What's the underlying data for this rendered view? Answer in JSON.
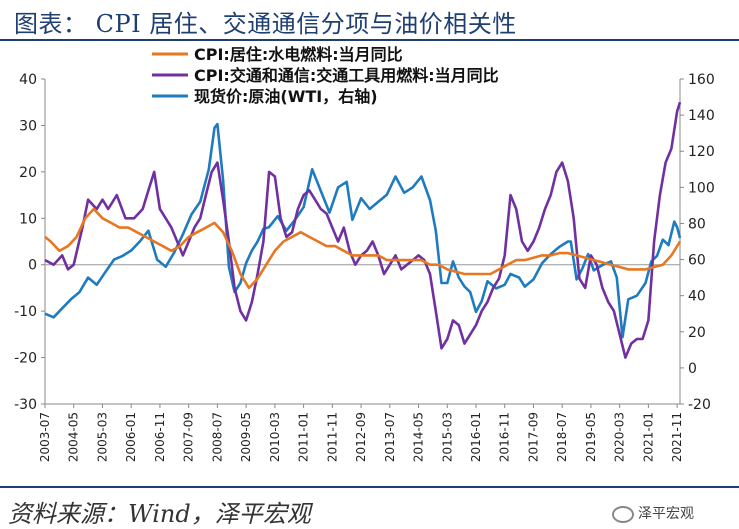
{
  "title": "图表： CPI 居住、交通通信分项与油价相关性",
  "source": "资料来源：Wind，泽平宏观",
  "watermark": "泽平宏观",
  "chart_data": {
    "type": "line",
    "legend": [
      "CPI:居住:水电燃料:当月同比",
      "CPI:交通和通信:交通工具用燃料:当月同比",
      "现货价:原油(WTI，右轴)"
    ],
    "colors": [
      "#E87722",
      "#7030A0",
      "#1F7BC0"
    ],
    "y_left": {
      "min": -30,
      "max": 40,
      "ticks": [
        40,
        30,
        20,
        10,
        0,
        -10,
        -20,
        -30
      ]
    },
    "y_right": {
      "min": -20,
      "max": 160,
      "ticks": [
        160,
        140,
        120,
        100,
        80,
        60,
        40,
        20,
        0,
        -20
      ]
    },
    "x_ticks": [
      "2003-07",
      "2004-05",
      "2005-03",
      "2006-01",
      "2006-11",
      "2007-09",
      "2008-07",
      "2009-05",
      "2010-03",
      "2011-01",
      "2011-11",
      "2012-09",
      "2013-07",
      "2014-05",
      "2015-03",
      "2016-01",
      "2016-11",
      "2017-09",
      "2018-07",
      "2019-05",
      "2020-03",
      "2021-01",
      "2021-11"
    ],
    "x_range": [
      "2003-07",
      "2021-12"
    ],
    "series": [
      {
        "name": "CPI:居住:水电燃料:当月同比",
        "axis": "left",
        "points": [
          [
            "2003-07",
            6
          ],
          [
            "2003-09",
            5
          ],
          [
            "2003-12",
            3
          ],
          [
            "2004-03",
            4
          ],
          [
            "2004-06",
            6
          ],
          [
            "2004-09",
            10
          ],
          [
            "2004-12",
            12
          ],
          [
            "2005-03",
            10
          ],
          [
            "2005-06",
            9
          ],
          [
            "2005-09",
            8
          ],
          [
            "2005-12",
            8
          ],
          [
            "2006-03",
            7
          ],
          [
            "2006-06",
            6
          ],
          [
            "2006-09",
            5
          ],
          [
            "2006-12",
            4
          ],
          [
            "2007-03",
            3
          ],
          [
            "2007-06",
            4
          ],
          [
            "2007-09",
            6
          ],
          [
            "2007-12",
            7
          ],
          [
            "2008-03",
            8
          ],
          [
            "2008-06",
            9
          ],
          [
            "2008-09",
            7
          ],
          [
            "2008-12",
            3
          ],
          [
            "2009-03",
            -2
          ],
          [
            "2009-06",
            -5
          ],
          [
            "2009-09",
            -3
          ],
          [
            "2009-12",
            0
          ],
          [
            "2010-03",
            3
          ],
          [
            "2010-06",
            5
          ],
          [
            "2010-09",
            6
          ],
          [
            "2010-12",
            7
          ],
          [
            "2011-03",
            6
          ],
          [
            "2011-06",
            5
          ],
          [
            "2011-09",
            4
          ],
          [
            "2011-12",
            4
          ],
          [
            "2012-03",
            3
          ],
          [
            "2012-06",
            2
          ],
          [
            "2012-09",
            2
          ],
          [
            "2012-12",
            2
          ],
          [
            "2013-03",
            2
          ],
          [
            "2013-06",
            1
          ],
          [
            "2013-09",
            1
          ],
          [
            "2013-12",
            1
          ],
          [
            "2014-03",
            1
          ],
          [
            "2014-06",
            1
          ],
          [
            "2014-09",
            0
          ],
          [
            "2014-12",
            0
          ],
          [
            "2015-03",
            -1
          ],
          [
            "2015-06",
            -1.5
          ],
          [
            "2015-09",
            -2
          ],
          [
            "2015-12",
            -2
          ],
          [
            "2016-03",
            -2
          ],
          [
            "2016-06",
            -2
          ],
          [
            "2016-09",
            -1
          ],
          [
            "2016-12",
            0
          ],
          [
            "2017-03",
            1
          ],
          [
            "2017-06",
            1
          ],
          [
            "2017-09",
            1.5
          ],
          [
            "2017-12",
            2
          ],
          [
            "2018-03",
            2
          ],
          [
            "2018-06",
            2.5
          ],
          [
            "2018-09",
            2.5
          ],
          [
            "2018-12",
            2
          ],
          [
            "2019-03",
            1.5
          ],
          [
            "2019-06",
            1
          ],
          [
            "2019-09",
            0.5
          ],
          [
            "2019-12",
            0
          ],
          [
            "2020-03",
            -0.5
          ],
          [
            "2020-06",
            -1
          ],
          [
            "2020-09",
            -1
          ],
          [
            "2020-12",
            -1
          ],
          [
            "2021-03",
            -0.5
          ],
          [
            "2021-06",
            0
          ],
          [
            "2021-09",
            2
          ],
          [
            "2021-12",
            5
          ]
        ]
      },
      {
        "name": "CPI:交通和通信:交通工具用燃料:当月同比",
        "axis": "left",
        "points": [
          [
            "2003-07",
            1
          ],
          [
            "2003-10",
            0
          ],
          [
            "2004-01",
            2
          ],
          [
            "2004-03",
            -1
          ],
          [
            "2004-05",
            0
          ],
          [
            "2004-08",
            8
          ],
          [
            "2004-10",
            14
          ],
          [
            "2005-01",
            12
          ],
          [
            "2005-03",
            14
          ],
          [
            "2005-05",
            12
          ],
          [
            "2005-08",
            15
          ],
          [
            "2005-11",
            10
          ],
          [
            "2006-02",
            10
          ],
          [
            "2006-05",
            12
          ],
          [
            "2006-07",
            16
          ],
          [
            "2006-09",
            20
          ],
          [
            "2006-11",
            12
          ],
          [
            "2007-01",
            10
          ],
          [
            "2007-03",
            8
          ],
          [
            "2007-05",
            5
          ],
          [
            "2007-07",
            2
          ],
          [
            "2007-09",
            5
          ],
          [
            "2007-11",
            8
          ],
          [
            "2008-01",
            10
          ],
          [
            "2008-03",
            15
          ],
          [
            "2008-05",
            20
          ],
          [
            "2008-07",
            22
          ],
          [
            "2008-09",
            14
          ],
          [
            "2008-11",
            5
          ],
          [
            "2009-01",
            -5
          ],
          [
            "2009-03",
            -10
          ],
          [
            "2009-05",
            -12
          ],
          [
            "2009-07",
            -8
          ],
          [
            "2009-09",
            -2
          ],
          [
            "2009-11",
            5
          ],
          [
            "2010-01",
            20
          ],
          [
            "2010-03",
            19
          ],
          [
            "2010-05",
            10
          ],
          [
            "2010-07",
            6
          ],
          [
            "2010-09",
            7
          ],
          [
            "2010-11",
            12
          ],
          [
            "2011-01",
            15
          ],
          [
            "2011-03",
            16
          ],
          [
            "2011-05",
            14
          ],
          [
            "2011-07",
            12
          ],
          [
            "2011-09",
            11
          ],
          [
            "2011-11",
            8
          ],
          [
            "2012-01",
            5
          ],
          [
            "2012-03",
            8
          ],
          [
            "2012-05",
            3
          ],
          [
            "2012-07",
            0
          ],
          [
            "2012-09",
            2
          ],
          [
            "2012-11",
            3
          ],
          [
            "2013-01",
            5
          ],
          [
            "2013-03",
            2
          ],
          [
            "2013-05",
            -2
          ],
          [
            "2013-07",
            0
          ],
          [
            "2013-09",
            2
          ],
          [
            "2013-11",
            -1
          ],
          [
            "2014-01",
            0
          ],
          [
            "2014-03",
            1
          ],
          [
            "2014-05",
            2
          ],
          [
            "2014-07",
            1
          ],
          [
            "2014-09",
            -2
          ],
          [
            "2014-11",
            -10
          ],
          [
            "2015-01",
            -18
          ],
          [
            "2015-03",
            -16
          ],
          [
            "2015-05",
            -12
          ],
          [
            "2015-07",
            -13
          ],
          [
            "2015-09",
            -17
          ],
          [
            "2015-11",
            -15
          ],
          [
            "2016-01",
            -13
          ],
          [
            "2016-03",
            -10
          ],
          [
            "2016-05",
            -8
          ],
          [
            "2016-07",
            -5
          ],
          [
            "2016-09",
            -3
          ],
          [
            "2016-11",
            2
          ],
          [
            "2017-01",
            15
          ],
          [
            "2017-03",
            12
          ],
          [
            "2017-05",
            5
          ],
          [
            "2017-07",
            3
          ],
          [
            "2017-09",
            5
          ],
          [
            "2017-11",
            8
          ],
          [
            "2018-01",
            12
          ],
          [
            "2018-03",
            15
          ],
          [
            "2018-05",
            20
          ],
          [
            "2018-07",
            22
          ],
          [
            "2018-09",
            18
          ],
          [
            "2018-11",
            10
          ],
          [
            "2019-01",
            -3
          ],
          [
            "2019-03",
            -5
          ],
          [
            "2019-05",
            2
          ],
          [
            "2019-07",
            0
          ],
          [
            "2019-09",
            -5
          ],
          [
            "2019-11",
            -8
          ],
          [
            "2020-01",
            -10
          ],
          [
            "2020-03",
            -15
          ],
          [
            "2020-05",
            -20
          ],
          [
            "2020-07",
            -17
          ],
          [
            "2020-09",
            -16
          ],
          [
            "2020-11",
            -16
          ],
          [
            "2021-01",
            -12
          ],
          [
            "2021-03",
            5
          ],
          [
            "2021-05",
            15
          ],
          [
            "2021-07",
            22
          ],
          [
            "2021-09",
            25
          ],
          [
            "2021-11",
            33
          ],
          [
            "2021-12",
            35
          ]
        ]
      },
      {
        "name": "现货价:原油(WTI，右轴)",
        "axis": "right",
        "points": [
          [
            "2003-07",
            30
          ],
          [
            "2003-10",
            28
          ],
          [
            "2004-01",
            33
          ],
          [
            "2004-04",
            38
          ],
          [
            "2004-07",
            42
          ],
          [
            "2004-10",
            50
          ],
          [
            "2005-01",
            46
          ],
          [
            "2005-04",
            53
          ],
          [
            "2005-07",
            60
          ],
          [
            "2005-10",
            62
          ],
          [
            "2006-01",
            65
          ],
          [
            "2006-04",
            70
          ],
          [
            "2006-07",
            76
          ],
          [
            "2006-10",
            60
          ],
          [
            "2007-01",
            56
          ],
          [
            "2007-04",
            64
          ],
          [
            "2007-07",
            74
          ],
          [
            "2007-10",
            85
          ],
          [
            "2008-01",
            92
          ],
          [
            "2008-04",
            110
          ],
          [
            "2008-06",
            133
          ],
          [
            "2008-07",
            135
          ],
          [
            "2008-09",
            104
          ],
          [
            "2008-11",
            56
          ],
          [
            "2009-01",
            42
          ],
          [
            "2009-03",
            47
          ],
          [
            "2009-05",
            58
          ],
          [
            "2009-07",
            65
          ],
          [
            "2009-09",
            70
          ],
          [
            "2009-11",
            77
          ],
          [
            "2010-01",
            78
          ],
          [
            "2010-04",
            84
          ],
          [
            "2010-07",
            76
          ],
          [
            "2010-10",
            82
          ],
          [
            "2011-01",
            89
          ],
          [
            "2011-04",
            110
          ],
          [
            "2011-07",
            98
          ],
          [
            "2011-10",
            86
          ],
          [
            "2012-01",
            100
          ],
          [
            "2012-04",
            103
          ],
          [
            "2012-06",
            82
          ],
          [
            "2012-09",
            94
          ],
          [
            "2012-12",
            88
          ],
          [
            "2013-03",
            92
          ],
          [
            "2013-06",
            96
          ],
          [
            "2013-09",
            106
          ],
          [
            "2013-12",
            97
          ],
          [
            "2014-03",
            100
          ],
          [
            "2014-06",
            106
          ],
          [
            "2014-09",
            93
          ],
          [
            "2014-11",
            76
          ],
          [
            "2015-01",
            47
          ],
          [
            "2015-03",
            47
          ],
          [
            "2015-05",
            59
          ],
          [
            "2015-07",
            50
          ],
          [
            "2015-09",
            45
          ],
          [
            "2015-11",
            42
          ],
          [
            "2016-01",
            31
          ],
          [
            "2016-03",
            37
          ],
          [
            "2016-05",
            48
          ],
          [
            "2016-08",
            44
          ],
          [
            "2016-11",
            46
          ],
          [
            "2017-01",
            52
          ],
          [
            "2017-04",
            50
          ],
          [
            "2017-06",
            45
          ],
          [
            "2017-09",
            49
          ],
          [
            "2017-12",
            58
          ],
          [
            "2018-03",
            63
          ],
          [
            "2018-06",
            67
          ],
          [
            "2018-09",
            70
          ],
          [
            "2018-10",
            70
          ],
          [
            "2018-12",
            49
          ],
          [
            "2019-02",
            55
          ],
          [
            "2019-04",
            63
          ],
          [
            "2019-06",
            54
          ],
          [
            "2019-09",
            57
          ],
          [
            "2019-12",
            59
          ],
          [
            "2020-02",
            50
          ],
          [
            "2020-04",
            17
          ],
          [
            "2020-06",
            38
          ],
          [
            "2020-09",
            40
          ],
          [
            "2020-12",
            47
          ],
          [
            "2021-02",
            59
          ],
          [
            "2021-04",
            62
          ],
          [
            "2021-06",
            71
          ],
          [
            "2021-08",
            68
          ],
          [
            "2021-10",
            81
          ],
          [
            "2021-11",
            78
          ],
          [
            "2021-12",
            72
          ]
        ]
      }
    ]
  }
}
